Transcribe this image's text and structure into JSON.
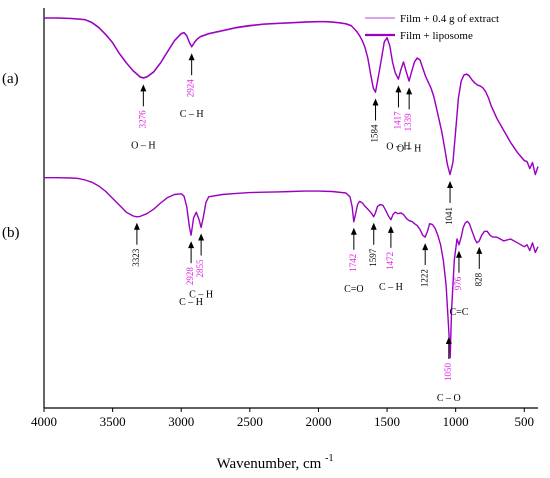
{
  "chart_data": [
    {
      "panel_label": "(a)",
      "type": "line",
      "xlabel": "Wavenumber, cm",
      "xlabel_superscript": "-1",
      "xlim": [
        4000,
        400
      ],
      "x_ticks": [
        "4000",
        "3500",
        "3000",
        "2500",
        "2000",
        "1500",
        "1000",
        "500"
      ],
      "x_tick_values": [
        4000,
        3500,
        3000,
        2500,
        2000,
        1500,
        1000,
        500
      ],
      "ylabel": "",
      "grid": false,
      "legend_position": "top-right",
      "series": [
        {
          "name": "Film + 0.4 g of extract",
          "color": "#b44ad6",
          "note_style": "thin-line",
          "x": [
            4000,
            3900,
            3800,
            3700,
            3650,
            3600,
            3550,
            3500,
            3450,
            3400,
            3350,
            3300,
            3276,
            3250,
            3200,
            3150,
            3100,
            3050,
            3000,
            2980,
            2960,
            2940,
            2924,
            2900,
            2880,
            2860,
            2840,
            2800,
            2700,
            2600,
            2500,
            2400,
            2300,
            2200,
            2100,
            2000,
            1950,
            1900,
            1850,
            1800,
            1760,
            1740,
            1720,
            1700,
            1680,
            1660,
            1640,
            1620,
            1600,
            1584,
            1560,
            1540,
            1520,
            1500,
            1480,
            1460,
            1440,
            1417,
            1400,
            1380,
            1360,
            1339,
            1320,
            1300,
            1280,
            1260,
            1240,
            1220,
            1200,
            1180,
            1160,
            1140,
            1120,
            1100,
            1080,
            1060,
            1041,
            1020,
            1000,
            980,
            960,
            940,
            920,
            900,
            880,
            860,
            840,
            820,
            800,
            780,
            760,
            740,
            720,
            700,
            650,
            600,
            550,
            500,
            480,
            460,
            440,
            420,
            400
          ],
          "y": [
            98.0,
            98.0,
            97.6,
            97.0,
            95.5,
            93.0,
            89.5,
            85.5,
            80.0,
            75.5,
            71.5,
            68.5,
            68.0,
            68.5,
            71.0,
            75.5,
            81.0,
            86.5,
            90.0,
            90.5,
            89.0,
            85.5,
            83.5,
            86.0,
            87.5,
            88.5,
            89.0,
            90.0,
            91.5,
            93.0,
            94.0,
            94.8,
            95.2,
            95.5,
            95.8,
            96.0,
            96.0,
            95.8,
            95.5,
            95.0,
            94.0,
            92.5,
            91.0,
            89.0,
            86.5,
            83.0,
            78.0,
            70.0,
            63.0,
            61.0,
            70.0,
            78.0,
            86.0,
            88.0,
            84.0,
            76.0,
            70.5,
            67.5,
            72.0,
            76.0,
            71.0,
            66.5,
            71.5,
            76.0,
            78.0,
            77.0,
            73.0,
            69.0,
            66.0,
            63.0,
            59.0,
            53.0,
            47.0,
            41.0,
            33.0,
            25.0,
            20.0,
            26.0,
            42.0,
            58.0,
            66.5,
            69.5,
            70.0,
            69.0,
            67.0,
            65.5,
            64.5,
            64.0,
            63.0,
            61.0,
            58.0,
            54.0,
            51.0,
            48.0,
            42.0,
            36.0,
            31.0,
            27.0,
            26.5,
            23.0,
            26.0,
            20.0,
            24.0
          ]
        },
        {
          "name": "Film + liposome",
          "color": "#9b00c0",
          "note_style": "thick-line",
          "x": [
            4000,
            3900,
            3800,
            3700,
            3650,
            3600,
            3550,
            3500,
            3450,
            3400,
            3350,
            3300,
            3276,
            3250,
            3200,
            3150,
            3100,
            3050,
            3000,
            2980,
            2960,
            2940,
            2924,
            2900,
            2880,
            2860,
            2840,
            2800,
            2700,
            2600,
            2500,
            2400,
            2300,
            2200,
            2100,
            2000,
            1950,
            1900,
            1850,
            1800,
            1760,
            1740,
            1720,
            1700,
            1680,
            1660,
            1640,
            1620,
            1600,
            1584,
            1560,
            1540,
            1520,
            1500,
            1480,
            1460,
            1440,
            1417,
            1400,
            1380,
            1360,
            1339,
            1320,
            1300,
            1280,
            1260,
            1240,
            1220,
            1200,
            1180,
            1160,
            1140,
            1120,
            1100,
            1080,
            1060,
            1041,
            1020,
            1000,
            980,
            960,
            940,
            920,
            900,
            880,
            860,
            840,
            820,
            800,
            780,
            760,
            740,
            720,
            700,
            650,
            600,
            550,
            500,
            480,
            460,
            440,
            420,
            400
          ],
          "y": [
            98.0,
            98.0,
            97.8,
            97.2,
            95.8,
            93.3,
            89.8,
            85.8,
            80.3,
            75.8,
            71.8,
            68.8,
            68.3,
            68.8,
            71.3,
            75.8,
            81.3,
            86.8,
            90.3,
            90.8,
            89.3,
            85.8,
            83.8,
            86.3,
            87.8,
            88.8,
            89.3,
            90.3,
            91.8,
            93.3,
            94.3,
            95.0,
            95.4,
            95.7,
            96.0,
            96.2,
            96.2,
            96.0,
            95.7,
            95.2,
            94.2,
            92.7,
            91.2,
            89.2,
            86.7,
            83.2,
            78.2,
            70.2,
            63.2,
            61.2,
            70.2,
            78.2,
            86.2,
            88.2,
            84.2,
            76.2,
            70.7,
            67.7,
            72.2,
            76.2,
            71.2,
            66.7,
            71.7,
            76.2,
            78.2,
            77.2,
            73.2,
            69.2,
            66.2,
            63.2,
            59.2,
            53.2,
            47.2,
            41.2,
            33.2,
            25.2,
            20.2,
            26.2,
            42.2,
            58.2,
            66.7,
            69.7,
            70.2,
            69.2,
            67.2,
            65.7,
            64.7,
            64.2,
            63.2,
            61.2,
            58.2,
            54.2,
            51.2,
            48.2,
            42.2,
            36.2,
            31.2,
            27.2,
            26.7,
            23.2,
            26.2,
            20.2,
            24.2
          ]
        }
      ],
      "peak_labels": [
        {
          "value": "3276",
          "wavenumber": 3276,
          "color": "#e020e0"
        },
        {
          "value": "2924",
          "wavenumber": 2924,
          "color": "#e020e0"
        },
        {
          "value": "1584",
          "wavenumber": 1584,
          "color": "#000000"
        },
        {
          "value": "1417",
          "wavenumber": 1417,
          "color": "#e020e0"
        },
        {
          "value": "1339",
          "wavenumber": 1339,
          "color": "#e020e0"
        },
        {
          "value": "1041",
          "wavenumber": 1041,
          "color": "#000000"
        }
      ],
      "annotations": [
        {
          "text": "O – H",
          "wavenumber": 3276
        },
        {
          "text": "C – H",
          "wavenumber": 2924
        },
        {
          "text": "O – H",
          "wavenumber": 1417
        },
        {
          "text": "O – H",
          "wavenumber": 1339
        }
      ]
    },
    {
      "panel_label": "(b)",
      "type": "line",
      "xlabel": "Wavenumber, cm",
      "xlabel_superscript": "-1",
      "xlim": [
        4000,
        400
      ],
      "ylabel": "",
      "grid": false,
      "series": [
        {
          "name": "",
          "color": "#9b00c0",
          "x": [
            4000,
            3900,
            3800,
            3750,
            3700,
            3650,
            3600,
            3550,
            3500,
            3450,
            3400,
            3350,
            3323,
            3300,
            3250,
            3200,
            3150,
            3100,
            3050,
            3000,
            2980,
            2960,
            2940,
            2928,
            2910,
            2890,
            2870,
            2855,
            2840,
            2820,
            2800,
            2700,
            2600,
            2500,
            2400,
            2300,
            2200,
            2100,
            2000,
            1900,
            1800,
            1770,
            1755,
            1742,
            1730,
            1715,
            1700,
            1680,
            1660,
            1640,
            1620,
            1610,
            1597,
            1585,
            1570,
            1550,
            1530,
            1510,
            1490,
            1472,
            1455,
            1440,
            1420,
            1400,
            1380,
            1360,
            1340,
            1320,
            1300,
            1280,
            1260,
            1240,
            1222,
            1205,
            1190,
            1170,
            1150,
            1130,
            1110,
            1090,
            1070,
            1050,
            1040,
            1030,
            1010,
            990,
            976,
            960,
            945,
            930,
            915,
            900,
            880,
            860,
            845,
            828,
            810,
            790,
            770,
            750,
            730,
            700,
            650,
            600,
            550,
            500,
            480,
            460,
            440,
            420,
            400
          ],
          "y": [
            98.0,
            98.0,
            97.9,
            97.8,
            97.4,
            96.8,
            95.8,
            94.4,
            92.6,
            90.8,
            89.0,
            88.0,
            87.8,
            87.9,
            88.6,
            89.8,
            91.4,
            92.8,
            93.6,
            93.8,
            93.2,
            90.5,
            85.0,
            83.0,
            87.5,
            89.0,
            87.0,
            85.0,
            87.5,
            91.5,
            93.0,
            93.6,
            93.9,
            94.1,
            94.2,
            94.3,
            94.4,
            94.5,
            94.5,
            94.4,
            94.0,
            93.0,
            90.5,
            86.5,
            88.5,
            91.0,
            91.8,
            91.4,
            90.5,
            89.8,
            89.0,
            88.5,
            87.8,
            88.8,
            90.5,
            91.0,
            90.8,
            89.5,
            88.0,
            87.0,
            88.5,
            89.0,
            88.6,
            88.8,
            88.4,
            87.4,
            86.8,
            86.6,
            86.0,
            85.5,
            84.5,
            83.0,
            82.5,
            84.0,
            86.0,
            85.8,
            84.8,
            83.0,
            80.5,
            76.5,
            70.0,
            58.0,
            51.0,
            63.0,
            76.5,
            82.0,
            80.5,
            82.5,
            85.0,
            86.2,
            86.6,
            86.0,
            84.0,
            82.0,
            81.0,
            81.5,
            83.0,
            84.0,
            84.0,
            83.0,
            82.5,
            82.5,
            81.5,
            82.0,
            81.0,
            80.0,
            80.5,
            79.0,
            81.0,
            78.5,
            80.0
          ]
        }
      ],
      "peak_labels": [
        {
          "value": "3323",
          "wavenumber": 3323,
          "color": "#000000"
        },
        {
          "value": "2928",
          "wavenumber": 2928,
          "color": "#e020e0"
        },
        {
          "value": "2855",
          "wavenumber": 2855,
          "color": "#e020e0"
        },
        {
          "value": "1742",
          "wavenumber": 1742,
          "color": "#e020e0"
        },
        {
          "value": "1597",
          "wavenumber": 1597,
          "color": "#000000"
        },
        {
          "value": "1472",
          "wavenumber": 1472,
          "color": "#e020e0"
        },
        {
          "value": "1222",
          "wavenumber": 1222,
          "color": "#000000"
        },
        {
          "value": "1050",
          "wavenumber": 1050,
          "color": "#e020e0"
        },
        {
          "value": "976",
          "wavenumber": 976,
          "color": "#e020e0"
        },
        {
          "value": "828",
          "wavenumber": 828,
          "color": "#000000"
        }
      ],
      "annotations": [
        {
          "text": "C – H",
          "wavenumber": 2928
        },
        {
          "text": "C – H",
          "wavenumber": 2855
        },
        {
          "text": "C=O",
          "wavenumber": 1742
        },
        {
          "text": "C – H",
          "wavenumber": 1472
        },
        {
          "text": "C – O",
          "wavenumber": 1050
        },
        {
          "text": "C=C",
          "wavenumber": 976
        }
      ]
    }
  ]
}
